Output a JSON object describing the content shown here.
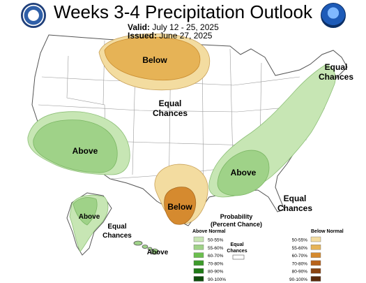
{
  "header": {
    "title": "Weeks 3-4 Precipitation Outlook",
    "valid_label": "Valid:",
    "valid_value": "July 12 - 25, 2025",
    "issued_label": "Issued:",
    "issued_value": "June 27, 2025"
  },
  "logos": {
    "left": "doc-seal-icon",
    "right": "noaa-logo-icon"
  },
  "map_labels": {
    "below_north": "Below",
    "equal_center_1": "Equal",
    "equal_center_2": "Chances",
    "equal_ne_1": "Equal",
    "equal_ne_2": "Chances",
    "above_sw": "Above",
    "above_se": "Above",
    "below_tx": "Below",
    "equal_se_1": "Equal",
    "equal_se_2": "Chances",
    "above_ak": "Above",
    "equal_ak_1": "Equal",
    "equal_ak_2": "Chances",
    "above_hi": "Above"
  },
  "legend": {
    "title_1": "Probability",
    "title_2": "(Percent Chance)",
    "above_title": "Above Normal",
    "below_title": "Below Normal",
    "equal_1": "Equal",
    "equal_2": "Chances",
    "above_items": [
      {
        "label": "50-55%",
        "color": "#c7e6b4"
      },
      {
        "label": "55-60%",
        "color": "#9fd288"
      },
      {
        "label": "60-70%",
        "color": "#6bbf4e"
      },
      {
        "label": "70-80%",
        "color": "#3d9b2b"
      },
      {
        "label": "80-90%",
        "color": "#1f7a17"
      },
      {
        "label": "90-100%",
        "color": "#0f4d0d"
      }
    ],
    "below_items": [
      {
        "label": "50-55%",
        "color": "#f3dca0"
      },
      {
        "label": "55-60%",
        "color": "#e6b356"
      },
      {
        "label": "60-70%",
        "color": "#d58a2f"
      },
      {
        "label": "70-80%",
        "color": "#b8621b"
      },
      {
        "label": "80-90%",
        "color": "#8a4412"
      },
      {
        "label": "90-100%",
        "color": "#5a2a0c"
      }
    ]
  }
}
